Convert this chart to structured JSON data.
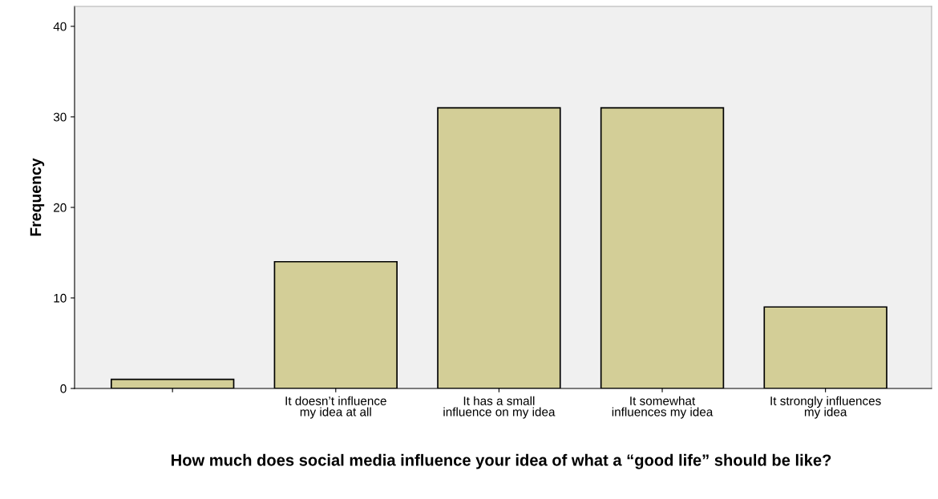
{
  "chart_data": {
    "type": "bar",
    "xlabel": "How much does social media influence your idea of what a “good life” should be like?",
    "ylabel": "Frequency",
    "categories": [
      null,
      "It doesn’t influence\nmy idea at all",
      "It has a small\ninfluence on my idea",
      "It somewhat\ninfluences my idea",
      "It strongly influences\nmy idea"
    ],
    "values": [
      1,
      14,
      31,
      31,
      9
    ],
    "color": "#d3ce97",
    "ylim": [
      0,
      42.2
    ],
    "yticks": [
      0,
      10,
      20,
      30,
      40
    ],
    "grid": false
  }
}
